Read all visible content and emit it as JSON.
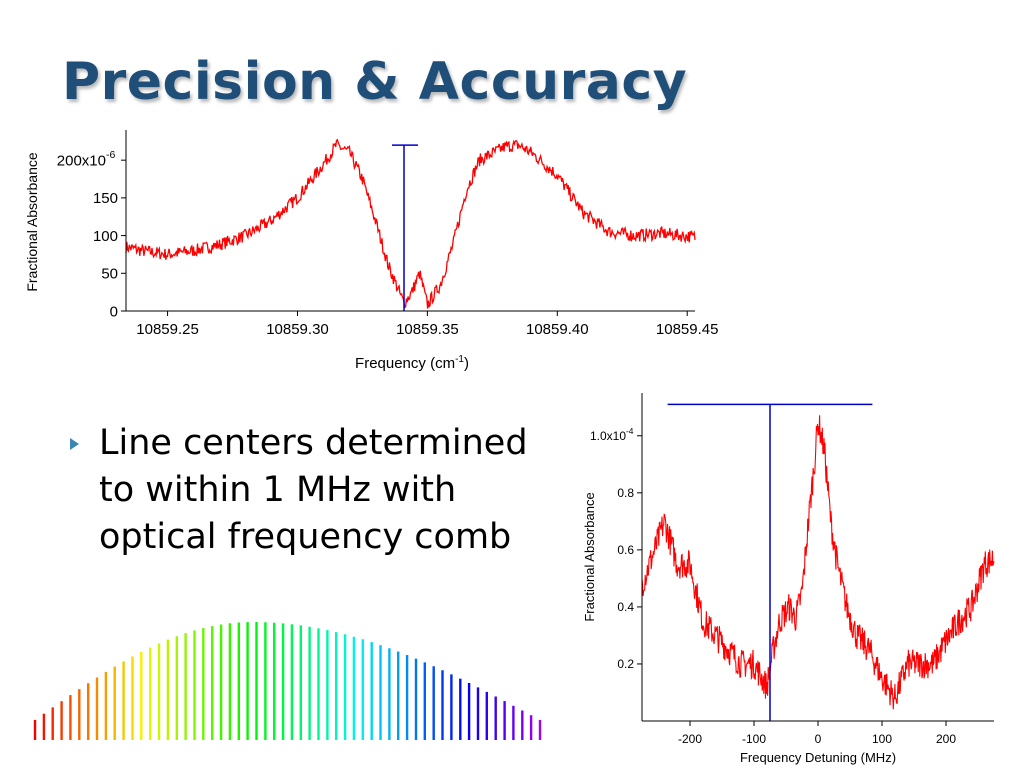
{
  "slide": {
    "title": "Precision & Accuracy",
    "bullet": "Line centers determined to within 1 MHz with optical frequency comb"
  },
  "colors": {
    "title": "#1f4e79",
    "trace": "#ff0000",
    "marker": "#0000cc",
    "bullet": "#3c86b5"
  },
  "icons": {
    "bullet": "triangle-right-icon"
  },
  "chart_data": [
    {
      "type": "line",
      "xlabel_base": "Frequency (cm",
      "xlabel_sup": "-1",
      "xlabel_end": ")",
      "ylabel": "Fractional Absorbance",
      "xlim": [
        10859.234,
        10859.453
      ],
      "ylim": [
        0,
        240
      ],
      "xticks": [
        10859.25,
        10859.3,
        10859.35,
        10859.4,
        10859.45
      ],
      "xtick_labels": [
        "10859.25",
        "10859.30",
        "10859.35",
        "10859.40",
        "10859.45"
      ],
      "yticks": [
        0,
        50,
        100,
        150,
        200
      ],
      "ytick_labels": [
        "0",
        "50",
        "100",
        "150",
        "200x10"
      ],
      "ytick_top_exponent": "-6",
      "series": [
        {
          "color": "#ff0000",
          "x": [
            10859.234,
            10859.24,
            10859.25,
            10859.26,
            10859.27,
            10859.28,
            10859.29,
            10859.3,
            10859.31,
            10859.315,
            10859.32,
            10859.325,
            10859.33,
            10859.335,
            10859.338,
            10859.341,
            10859.344,
            10859.347,
            10859.35,
            10859.355,
            10859.36,
            10859.365,
            10859.37,
            10859.38,
            10859.385,
            10859.39,
            10859.4,
            10859.41,
            10859.42,
            10859.43,
            10859.44,
            10859.453
          ],
          "y": [
            85,
            80,
            75,
            80,
            88,
            100,
            120,
            150,
            195,
            220,
            210,
            175,
            120,
            60,
            35,
            10,
            25,
            50,
            8,
            35,
            90,
            160,
            200,
            218,
            220,
            210,
            180,
            130,
            105,
            100,
            103,
            98
          ]
        }
      ],
      "marker": {
        "x": 10859.341,
        "y_bottom": 0,
        "y_top": 220
      }
    },
    {
      "type": "line",
      "xlabel": "Frequency Detuning (MHz)",
      "ylabel": "Fractional Absorbance",
      "xlim": [
        -275,
        275
      ],
      "ylim": [
        0,
        1.15
      ],
      "xticks": [
        -200,
        -100,
        0,
        100,
        200
      ],
      "xtick_labels": [
        "-200",
        "-100",
        "0",
        "100",
        "200"
      ],
      "yticks": [
        0.2,
        0.4,
        0.6,
        0.8,
        1.0
      ],
      "ytick_labels": [
        "0.2",
        "0.4",
        "0.6",
        "0.8",
        "1.0x10"
      ],
      "ytick_top_exponent": "-4",
      "series": [
        {
          "color": "#ff0000",
          "x": [
            -275,
            -255,
            -240,
            -220,
            -200,
            -180,
            -160,
            -140,
            -120,
            -100,
            -80,
            -70,
            -60,
            -45,
            -35,
            -25,
            -15,
            -5,
            0,
            10,
            20,
            30,
            45,
            60,
            80,
            100,
            120,
            140,
            160,
            180,
            200,
            220,
            240,
            260,
            275
          ],
          "y": [
            0.48,
            0.6,
            0.7,
            0.55,
            0.55,
            0.35,
            0.3,
            0.25,
            0.2,
            0.2,
            0.12,
            0.25,
            0.35,
            0.4,
            0.36,
            0.45,
            0.7,
            0.92,
            1.05,
            0.95,
            0.7,
            0.55,
            0.4,
            0.3,
            0.25,
            0.15,
            0.08,
            0.2,
            0.2,
            0.2,
            0.28,
            0.35,
            0.4,
            0.55,
            0.57
          ]
        }
      ],
      "marker": {
        "x": -75,
        "x_bar_left": -235,
        "x_bar_right": 85,
        "y_bottom": 0,
        "y_top": 1.11
      }
    }
  ],
  "comb": {
    "count": 58,
    "envelope_low": 0.17,
    "envelope_high": 1.0,
    "envelope_peak_fraction": 0.43
  }
}
